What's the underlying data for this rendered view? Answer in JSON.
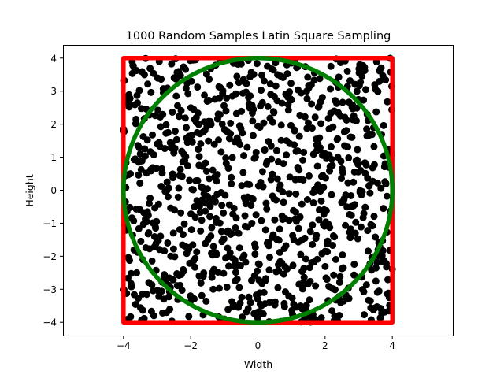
{
  "chart_data": {
    "type": "scatter",
    "title": "1000 Random Samples Latin Square Sampling",
    "xlabel": "Width",
    "ylabel": "Height",
    "xlim": [
      -5.8,
      5.8
    ],
    "ylim": [
      -4.4,
      4.4
    ],
    "xticks": [
      -4,
      -2,
      0,
      2,
      4
    ],
    "yticks": [
      -4,
      -3,
      -2,
      -1,
      0,
      1,
      2,
      3,
      4
    ],
    "xtick_labels": [
      "−4",
      "−2",
      "0",
      "2",
      "4"
    ],
    "ytick_labels": [
      "−4",
      "−3",
      "−2",
      "−1",
      "0",
      "1",
      "2",
      "3",
      "4"
    ],
    "grid": false,
    "sample_count": 1000,
    "sample_range": [
      -4,
      4
    ],
    "sample_distribution": "latin hypercube, uniform over the square",
    "square": {
      "corners": [
        [
          -4,
          -4
        ],
        [
          4,
          -4
        ],
        [
          4,
          4
        ],
        [
          -4,
          4
        ]
      ]
    },
    "circle": {
      "center": [
        0,
        0
      ],
      "radius": 4
    },
    "colors": {
      "points": "#000000",
      "square": "#ff0000",
      "circle": "#008000",
      "axes": "#000000",
      "background": "#ffffff"
    }
  }
}
